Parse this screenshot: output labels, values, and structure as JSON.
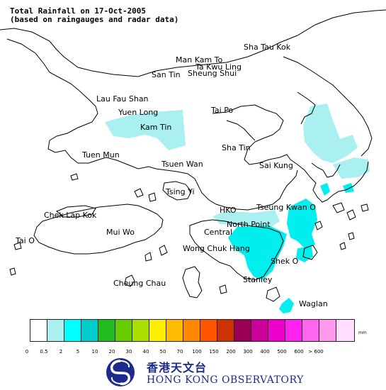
{
  "title": {
    "line1": "Total Rainfall on 17-Oct-2005",
    "line2": "(based on raingauges and radar data)"
  },
  "colors": {
    "land_outline": "#000000",
    "background": "#ffffff",
    "rain_light": "#aaf0f0",
    "rain_moderate": "#00eeee",
    "border": "#5f6fa0"
  },
  "map": {
    "places": [
      {
        "key": "sha-tau-kok",
        "label": "Sha Tau Kok"
      },
      {
        "key": "man-kam-to",
        "label": "Man Kam To"
      },
      {
        "key": "ta-kwu-ling",
        "label": "Ta Kwu Ling"
      },
      {
        "key": "san-tin",
        "label": "San Tin"
      },
      {
        "key": "sheung-shui",
        "label": "Sheung Shui"
      },
      {
        "key": "lau-fau-shan",
        "label": "Lau Fau Shan"
      },
      {
        "key": "yuen-long",
        "label": "Yuen Long"
      },
      {
        "key": "tai-po",
        "label": "Tai Po"
      },
      {
        "key": "kam-tin",
        "label": "Kam Tin"
      },
      {
        "key": "sha-tin",
        "label": "Sha Tin"
      },
      {
        "key": "tuen-mun",
        "label": "Tuen Mun"
      },
      {
        "key": "tsuen-wan",
        "label": "Tsuen Wan"
      },
      {
        "key": "sai-kung",
        "label": "Sai Kung"
      },
      {
        "key": "tsing-yi",
        "label": "Tsing Yi"
      },
      {
        "key": "hko",
        "label": "HKO"
      },
      {
        "key": "tseung-kwan-o",
        "label": "Tseung Kwan O"
      },
      {
        "key": "chek-lap-kok",
        "label": "Chek Lap Kok"
      },
      {
        "key": "north-point",
        "label": "North Point"
      },
      {
        "key": "mui-wo",
        "label": "Mui Wo"
      },
      {
        "key": "central",
        "label": "Central"
      },
      {
        "key": "tai-o",
        "label": "Tai O"
      },
      {
        "key": "wong-chuk-hang",
        "label": "Wong Chuk Hang"
      },
      {
        "key": "shek-o",
        "label": "Shek O"
      },
      {
        "key": "stanley",
        "label": "Stanley"
      },
      {
        "key": "cheung-chau",
        "label": "Cheung Chau"
      },
      {
        "key": "waglan",
        "label": "Waglan"
      }
    ]
  },
  "legend": {
    "unit": "mm",
    "colors": [
      "#ffffff",
      "#aaf0f0",
      "#00ffff",
      "#00cccc",
      "#22bb22",
      "#66cc00",
      "#aadd00",
      "#ffee00",
      "#ffbb00",
      "#ff8800",
      "#ff5500",
      "#cc3300",
      "#990055",
      "#cc0099",
      "#ee00cc",
      "#ff22ee",
      "#ff66ee",
      "#ff99ee",
      "#ffddff"
    ],
    "ticks": [
      "0",
      "0.5",
      "2",
      "5",
      "10",
      "20",
      "30",
      "40",
      "50",
      "70",
      "100",
      "150",
      "200",
      "300",
      "400",
      "500",
      "600",
      "> 600"
    ]
  },
  "logo": {
    "chinese": "香港天文台",
    "english": "HONG KONG OBSERVATORY"
  }
}
